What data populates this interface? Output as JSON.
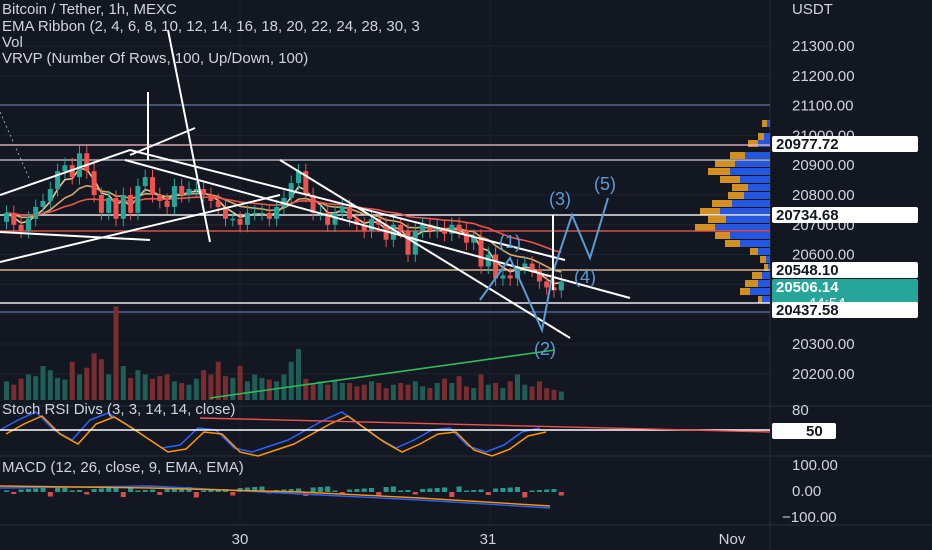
{
  "header": {
    "line1": "Bitcoin / Tether, 1h, MEXC",
    "line2": "EMA Ribbon (2, 4, 6, 8, 10, 12, 14, 16, 18, 20, 22, 24, 28, 30, 3",
    "line3": "Vol",
    "line4": "VRVP (Number Of Rows, 100, Up/Down, 100)",
    "currency": "USDT"
  },
  "price_axis": {
    "ticks": [
      "21300.00",
      "21200.00",
      "21100.00",
      "21000.00",
      "20900.00",
      "20800.00",
      "20700.00",
      "20600.00",
      "20500.00",
      "20400.00",
      "20300.00",
      "20200.00"
    ],
    "tags": [
      {
        "value": "20977.72",
        "style": "white"
      },
      {
        "value": "20734.68",
        "style": "white"
      },
      {
        "value": "20548.10",
        "style": "white"
      },
      {
        "value": "20506.14",
        "style": "green",
        "countdown": "44:54"
      },
      {
        "value": "20437.58",
        "style": "white"
      }
    ]
  },
  "stoch_panel": {
    "title": "Stoch RSI Divs (3, 3, 14, 14, close)",
    "ticks": [
      "80",
      "50"
    ],
    "tag": "50"
  },
  "macd_panel": {
    "title": "MACD (12, 26, close, 9, EMA, EMA)",
    "ticks": [
      "100.00",
      "0.00",
      "−100.00"
    ]
  },
  "time_axis": [
    "30",
    "31",
    "Nov"
  ],
  "wave_labels": [
    "(1)",
    "(2)",
    "(3)",
    "(4)",
    "(5)"
  ],
  "colors": {
    "background": "#131722",
    "up": "#26a69a",
    "down": "#ef5350",
    "wave": "#5b9bd5",
    "profile_up": "#2962ff",
    "profile_down": "#f5a623"
  },
  "chart_data": {
    "type": "candlestick",
    "title": "Bitcoin / Tether, 1h, MEXC",
    "ylabel": "USDT",
    "ylim": [
      20150,
      21450
    ],
    "closes": [
      20740,
      20700,
      20680,
      20720,
      20760,
      20780,
      20820,
      20880,
      20900,
      20860,
      20940,
      20880,
      20800,
      20740,
      20790,
      20720,
      20800,
      20740,
      20830,
      20860,
      20800,
      20780,
      20760,
      20830,
      20800,
      20820,
      20820,
      20800,
      20780,
      20760,
      20720,
      20720,
      20700,
      20740,
      20740,
      20740,
      20720,
      20760,
      20790,
      20840,
      20880,
      20800,
      20740,
      20740,
      20700,
      20740,
      20760,
      20720,
      20700,
      20680,
      20720,
      20700,
      20650,
      20700,
      20680,
      20600,
      20680,
      20700,
      20680,
      20690,
      20670,
      20700,
      20680,
      20640,
      20660,
      20560,
      20600,
      20520,
      20530,
      20520,
      20560,
      20570,
      20550,
      20510,
      20490,
      20480,
      20510
    ],
    "volume": [
      22,
      18,
      25,
      30,
      28,
      40,
      35,
      26,
      24,
      45,
      30,
      38,
      55,
      48,
      30,
      110,
      40,
      26,
      35,
      30,
      25,
      28,
      30,
      22,
      20,
      18,
      25,
      35,
      30,
      45,
      28,
      26,
      40,
      22,
      30,
      26,
      24,
      22,
      30,
      45,
      60,
      25,
      20,
      22,
      18,
      24,
      20,
      20,
      16,
      18,
      22,
      20,
      14,
      18,
      20,
      18,
      22,
      16,
      14,
      20,
      25,
      20,
      28,
      16,
      14,
      30,
      18,
      20,
      14,
      22,
      30,
      18,
      16,
      22,
      14,
      12,
      10
    ]
  }
}
